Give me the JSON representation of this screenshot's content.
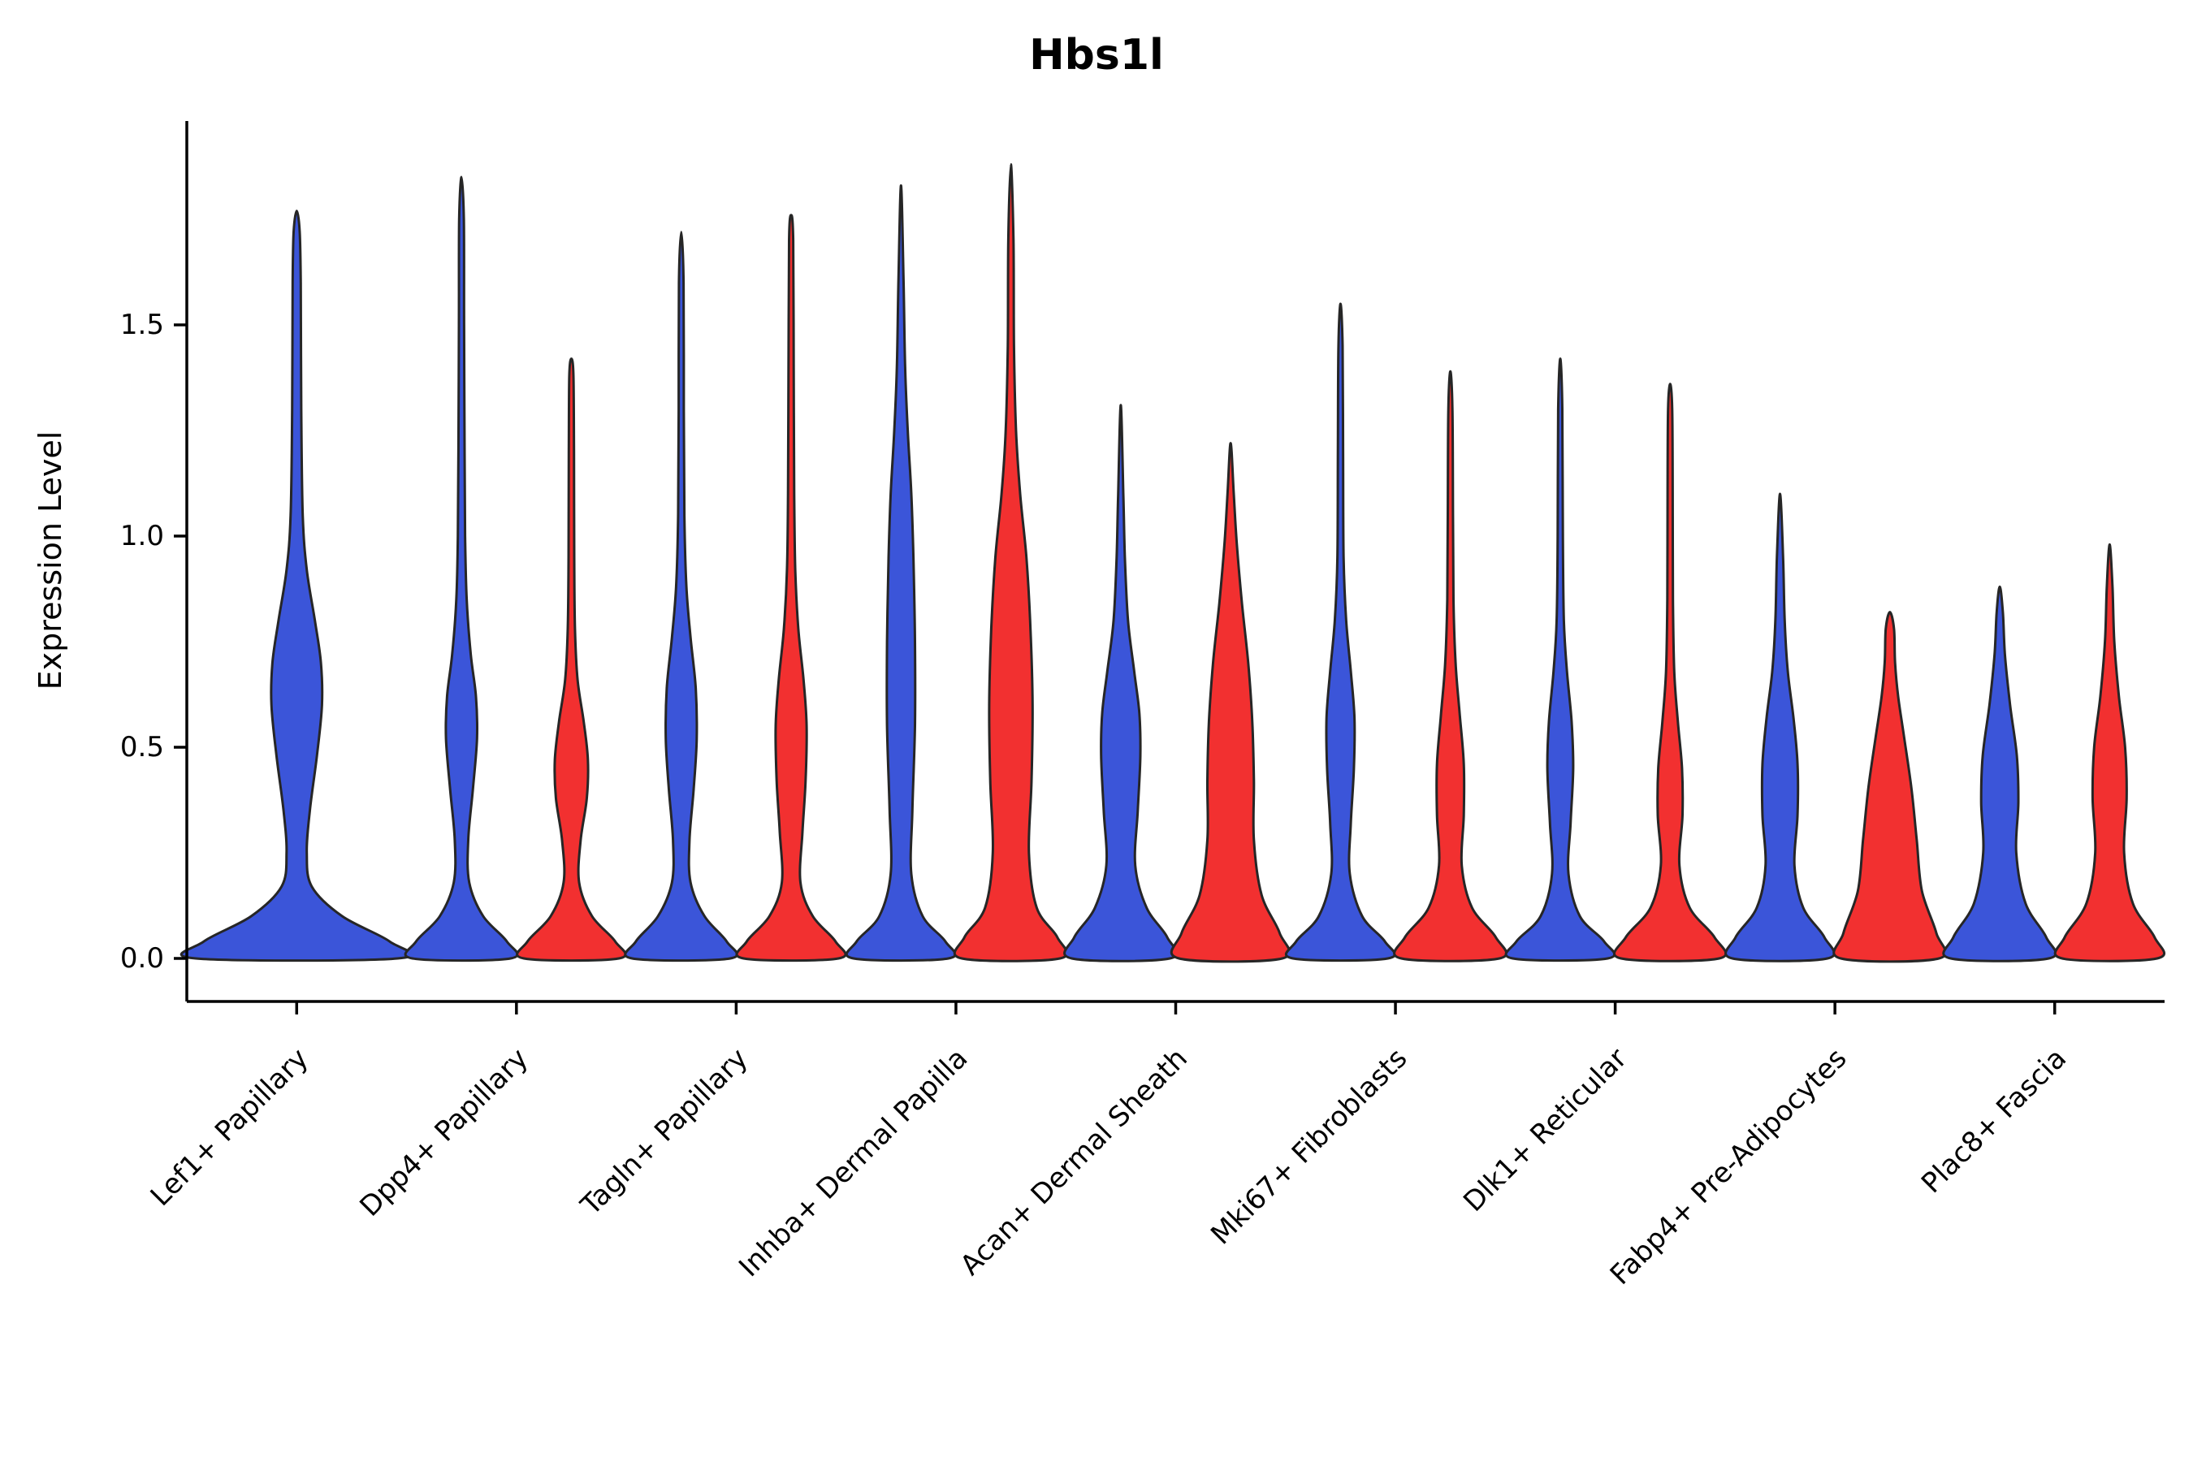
{
  "chart_data": {
    "type": "violin",
    "title": "Hbs1l",
    "xlabel": "",
    "ylabel": "Expression Level",
    "yticks": [
      0.0,
      0.5,
      1.0,
      1.5
    ],
    "ylim": [
      -0.1,
      1.98
    ],
    "grid": false,
    "legend": "none",
    "outline_color": "#262626",
    "axis_color": "#000000",
    "series_colors": {
      "group1": "#3B55D9",
      "group2": "#F23030"
    },
    "categories": [
      "Lef1+ Papillary",
      "Dpp4+ Papillary",
      "Tagln+ Papillary",
      "Inhba+ Dermal Papilla",
      "Acan+ Dermal Sheath",
      "Mki67+ Fibroblasts",
      "Dlk1+ Reticular",
      "Fabp4+ Pre-Adipocytes",
      "Plac8+ Fascia"
    ],
    "violins": [
      {
        "category": "Lef1+ Papillary",
        "group1": {
          "max": 1.77,
          "profile": [
            [
              0,
              1.0
            ],
            [
              0.04,
              0.92
            ],
            [
              0.1,
              0.45
            ],
            [
              0.17,
              0.15
            ],
            [
              0.25,
              0.1
            ],
            [
              0.35,
              0.13
            ],
            [
              0.48,
              0.2
            ],
            [
              0.6,
              0.25
            ],
            [
              0.7,
              0.24
            ],
            [
              0.8,
              0.18
            ],
            [
              0.92,
              0.1
            ],
            [
              1.05,
              0.06
            ],
            [
              1.3,
              0.045
            ],
            [
              1.6,
              0.04
            ],
            [
              1.72,
              0.03
            ],
            [
              1.77,
              0
            ]
          ]
        },
        "group2": null
      },
      {
        "category": "Dpp4+ Papillary",
        "group1": {
          "max": 1.85,
          "profile": [
            [
              0,
              0.95
            ],
            [
              0.04,
              0.88
            ],
            [
              0.1,
              0.42
            ],
            [
              0.18,
              0.15
            ],
            [
              0.28,
              0.13
            ],
            [
              0.4,
              0.22
            ],
            [
              0.52,
              0.3
            ],
            [
              0.62,
              0.28
            ],
            [
              0.72,
              0.18
            ],
            [
              0.85,
              0.1
            ],
            [
              1.0,
              0.07
            ],
            [
              1.2,
              0.06
            ],
            [
              1.5,
              0.05
            ],
            [
              1.75,
              0.045
            ],
            [
              1.85,
              0
            ]
          ]
        },
        "group2": {
          "max": 1.42,
          "profile": [
            [
              0,
              0.92
            ],
            [
              0.04,
              0.85
            ],
            [
              0.1,
              0.4
            ],
            [
              0.18,
              0.15
            ],
            [
              0.28,
              0.18
            ],
            [
              0.38,
              0.3
            ],
            [
              0.47,
              0.32
            ],
            [
              0.56,
              0.24
            ],
            [
              0.66,
              0.12
            ],
            [
              0.78,
              0.07
            ],
            [
              0.95,
              0.055
            ],
            [
              1.2,
              0.05
            ],
            [
              1.38,
              0.04
            ],
            [
              1.42,
              0
            ]
          ]
        }
      },
      {
        "category": "Tagln+ Papillary",
        "group1": {
          "max": 1.72,
          "profile": [
            [
              0,
              0.95
            ],
            [
              0.04,
              0.88
            ],
            [
              0.1,
              0.45
            ],
            [
              0.18,
              0.18
            ],
            [
              0.28,
              0.16
            ],
            [
              0.4,
              0.24
            ],
            [
              0.52,
              0.3
            ],
            [
              0.64,
              0.28
            ],
            [
              0.76,
              0.18
            ],
            [
              0.88,
              0.1
            ],
            [
              1.05,
              0.06
            ],
            [
              1.3,
              0.05
            ],
            [
              1.6,
              0.045
            ],
            [
              1.72,
              0
            ]
          ]
        },
        "group2": {
          "max": 1.76,
          "profile": [
            [
              0,
              0.92
            ],
            [
              0.04,
              0.86
            ],
            [
              0.1,
              0.42
            ],
            [
              0.18,
              0.18
            ],
            [
              0.3,
              0.22
            ],
            [
              0.42,
              0.28
            ],
            [
              0.55,
              0.3
            ],
            [
              0.66,
              0.24
            ],
            [
              0.78,
              0.14
            ],
            [
              0.92,
              0.08
            ],
            [
              1.1,
              0.06
            ],
            [
              1.4,
              0.05
            ],
            [
              1.7,
              0.04
            ],
            [
              1.76,
              0
            ]
          ]
        }
      },
      {
        "category": "Inhba+ Dermal Papilla",
        "group1": {
          "max": 1.83,
          "profile": [
            [
              0,
              0.92
            ],
            [
              0.04,
              0.86
            ],
            [
              0.1,
              0.42
            ],
            [
              0.2,
              0.2
            ],
            [
              0.35,
              0.22
            ],
            [
              0.55,
              0.27
            ],
            [
              0.75,
              0.27
            ],
            [
              0.95,
              0.24
            ],
            [
              1.1,
              0.2
            ],
            [
              1.25,
              0.13
            ],
            [
              1.4,
              0.08
            ],
            [
              1.6,
              0.05
            ],
            [
              1.83,
              0
            ]
          ]
        },
        "group2": {
          "max": 1.88,
          "profile": [
            [
              0,
              0.95
            ],
            [
              0.05,
              0.9
            ],
            [
              0.12,
              0.5
            ],
            [
              0.25,
              0.35
            ],
            [
              0.42,
              0.4
            ],
            [
              0.6,
              0.42
            ],
            [
              0.78,
              0.38
            ],
            [
              0.95,
              0.3
            ],
            [
              1.1,
              0.18
            ],
            [
              1.25,
              0.1
            ],
            [
              1.45,
              0.06
            ],
            [
              1.7,
              0.05
            ],
            [
              1.88,
              0
            ]
          ]
        }
      },
      {
        "category": "Acan+ Dermal Sheath",
        "group1": {
          "max": 1.31,
          "profile": [
            [
              0,
              0.95
            ],
            [
              0.05,
              0.9
            ],
            [
              0.12,
              0.5
            ],
            [
              0.22,
              0.28
            ],
            [
              0.35,
              0.33
            ],
            [
              0.48,
              0.38
            ],
            [
              0.58,
              0.36
            ],
            [
              0.68,
              0.26
            ],
            [
              0.8,
              0.14
            ],
            [
              0.95,
              0.08
            ],
            [
              1.1,
              0.05
            ],
            [
              1.31,
              0
            ]
          ]
        },
        "group2": {
          "max": 1.22,
          "profile": [
            [
              0,
              1.0
            ],
            [
              0.06,
              0.95
            ],
            [
              0.15,
              0.6
            ],
            [
              0.28,
              0.45
            ],
            [
              0.42,
              0.45
            ],
            [
              0.56,
              0.42
            ],
            [
              0.7,
              0.34
            ],
            [
              0.84,
              0.22
            ],
            [
              0.98,
              0.12
            ],
            [
              1.1,
              0.06
            ],
            [
              1.22,
              0
            ]
          ]
        }
      },
      {
        "category": "Mki67+ Fibroblasts",
        "group1": {
          "max": 1.55,
          "profile": [
            [
              0,
              0.92
            ],
            [
              0.04,
              0.86
            ],
            [
              0.1,
              0.42
            ],
            [
              0.2,
              0.18
            ],
            [
              0.32,
              0.2
            ],
            [
              0.45,
              0.26
            ],
            [
              0.57,
              0.27
            ],
            [
              0.68,
              0.2
            ],
            [
              0.8,
              0.11
            ],
            [
              0.95,
              0.06
            ],
            [
              1.2,
              0.05
            ],
            [
              1.45,
              0.04
            ],
            [
              1.55,
              0
            ]
          ]
        },
        "group2": {
          "max": 1.39,
          "profile": [
            [
              0,
              0.95
            ],
            [
              0.05,
              0.88
            ],
            [
              0.12,
              0.42
            ],
            [
              0.22,
              0.22
            ],
            [
              0.34,
              0.26
            ],
            [
              0.46,
              0.26
            ],
            [
              0.58,
              0.18
            ],
            [
              0.7,
              0.1
            ],
            [
              0.85,
              0.06
            ],
            [
              1.05,
              0.05
            ],
            [
              1.3,
              0.04
            ],
            [
              1.39,
              0
            ]
          ]
        }
      },
      {
        "category": "Dlk1+ Reticular",
        "group1": {
          "max": 1.42,
          "profile": [
            [
              0,
              0.92
            ],
            [
              0.04,
              0.85
            ],
            [
              0.1,
              0.38
            ],
            [
              0.2,
              0.16
            ],
            [
              0.32,
              0.2
            ],
            [
              0.45,
              0.25
            ],
            [
              0.56,
              0.22
            ],
            [
              0.68,
              0.13
            ],
            [
              0.8,
              0.07
            ],
            [
              1.0,
              0.05
            ],
            [
              1.3,
              0.04
            ],
            [
              1.42,
              0
            ]
          ]
        },
        "group2": {
          "max": 1.36,
          "profile": [
            [
              0,
              0.95
            ],
            [
              0.05,
              0.86
            ],
            [
              0.12,
              0.38
            ],
            [
              0.22,
              0.18
            ],
            [
              0.34,
              0.24
            ],
            [
              0.45,
              0.23
            ],
            [
              0.56,
              0.15
            ],
            [
              0.68,
              0.08
            ],
            [
              0.85,
              0.055
            ],
            [
              1.1,
              0.05
            ],
            [
              1.3,
              0.04
            ],
            [
              1.36,
              0
            ]
          ]
        }
      },
      {
        "category": "Fabp4+ Pre-Adipocytes",
        "group1": {
          "max": 1.1,
          "profile": [
            [
              0,
              0.92
            ],
            [
              0.05,
              0.86
            ],
            [
              0.12,
              0.45
            ],
            [
              0.22,
              0.28
            ],
            [
              0.34,
              0.34
            ],
            [
              0.46,
              0.34
            ],
            [
              0.57,
              0.26
            ],
            [
              0.68,
              0.15
            ],
            [
              0.8,
              0.09
            ],
            [
              0.95,
              0.06
            ],
            [
              1.1,
              0
            ]
          ]
        },
        "group2": {
          "max": 0.82,
          "profile": [
            [
              0,
              0.95
            ],
            [
              0.06,
              0.9
            ],
            [
              0.16,
              0.62
            ],
            [
              0.28,
              0.52
            ],
            [
              0.4,
              0.42
            ],
            [
              0.52,
              0.28
            ],
            [
              0.62,
              0.16
            ],
            [
              0.7,
              0.1
            ],
            [
              0.78,
              0.08
            ],
            [
              0.82,
              0
            ]
          ]
        }
      },
      {
        "category": "Plac8+ Fascia",
        "group1": {
          "max": 0.88,
          "profile": [
            [
              0,
              0.95
            ],
            [
              0.05,
              0.9
            ],
            [
              0.13,
              0.5
            ],
            [
              0.25,
              0.32
            ],
            [
              0.37,
              0.36
            ],
            [
              0.48,
              0.33
            ],
            [
              0.6,
              0.2
            ],
            [
              0.72,
              0.1
            ],
            [
              0.82,
              0.06
            ],
            [
              0.88,
              0
            ]
          ]
        },
        "group2": {
          "max": 0.98,
          "profile": [
            [
              0,
              0.92
            ],
            [
              0.05,
              0.87
            ],
            [
              0.13,
              0.45
            ],
            [
              0.25,
              0.28
            ],
            [
              0.38,
              0.33
            ],
            [
              0.5,
              0.3
            ],
            [
              0.62,
              0.18
            ],
            [
              0.75,
              0.09
            ],
            [
              0.88,
              0.055
            ],
            [
              0.98,
              0
            ]
          ]
        }
      }
    ]
  }
}
